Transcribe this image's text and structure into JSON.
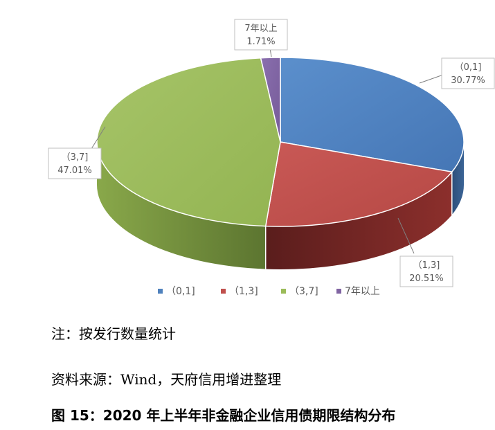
{
  "chart_data": {
    "type": "pie",
    "style": "3d",
    "legend_position": "bottom",
    "categories": [
      "（0,1]",
      "（1,3]",
      "（3,7]",
      "7年以上"
    ],
    "values": [
      30.77,
      20.51,
      47.01,
      1.71
    ],
    "value_labels": [
      "30.77%",
      "20.51%",
      "47.01%",
      "1.71%"
    ],
    "colors": [
      "#4F81BD",
      "#C0504D",
      "#9BBB59",
      "#8064A2"
    ]
  },
  "notes": {
    "note": "注：按发行数量统计",
    "source": "资料来源：Wind，天府信用增进整理"
  },
  "caption": "图 15：2020 年上半年非金融企业信用债期限结构分布"
}
